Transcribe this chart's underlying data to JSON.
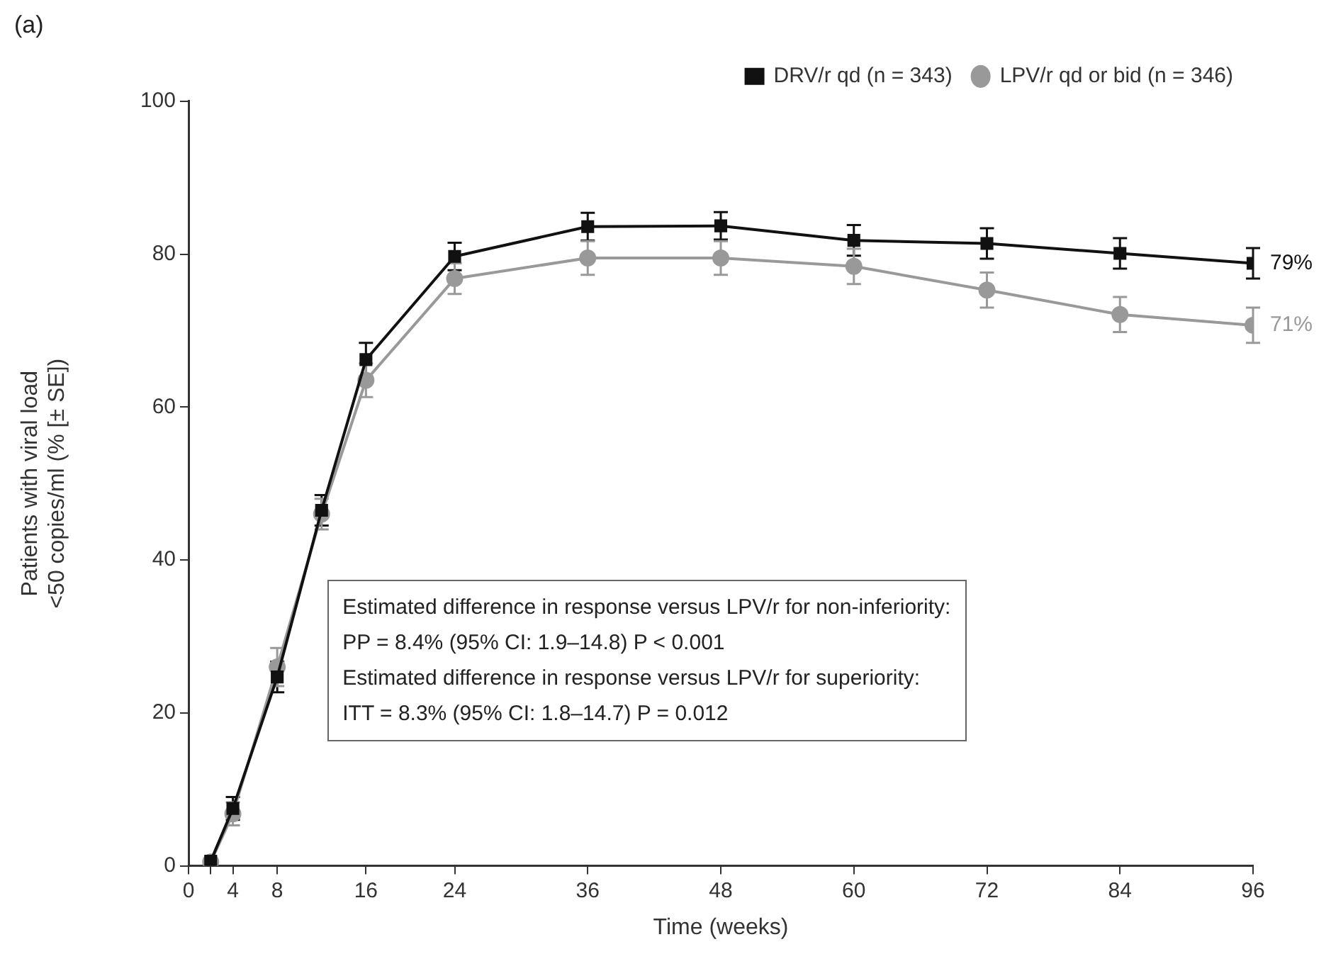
{
  "chart_data": {
    "type": "line",
    "title": "(a)",
    "xlabel": "Time (weeks)",
    "ylabel": "Patients with viral load\n<50 copies/ml (% [± SE])",
    "x": [
      2,
      4,
      8,
      12,
      16,
      24,
      36,
      48,
      60,
      72,
      84,
      96
    ],
    "series": [
      {
        "name": "DRV/r qd (n = 343)",
        "color": "#111111",
        "marker": "square",
        "values": [
          0.6,
          7.5,
          24.7,
          46.5,
          66.2,
          79.7,
          83.6,
          83.7,
          81.8,
          81.4,
          80.1,
          78.8
        ],
        "errors": [
          null,
          1.5,
          2,
          2,
          2.2,
          1.8,
          1.8,
          1.8,
          2,
          2,
          2,
          2
        ]
      },
      {
        "name": "LPV/r qd or bid (n = 346)",
        "color": "#999999",
        "marker": "circle",
        "values": [
          0.5,
          6.8,
          26,
          46,
          63.5,
          76.8,
          79.5,
          79.5,
          78.4,
          75.3,
          72.1,
          70.7
        ],
        "errors": [
          null,
          1.5,
          2.5,
          2,
          2.2,
          2,
          2.2,
          2.2,
          2.3,
          2.3,
          2.3,
          2.3
        ]
      }
    ],
    "xlim": [
      0,
      96
    ],
    "xticks": [
      0,
      {
        "value": 2,
        "label": null
      },
      4,
      8,
      16,
      24,
      36,
      48,
      60,
      72,
      84,
      96
    ],
    "ylim": [
      0,
      100
    ],
    "yticks": [
      0,
      20,
      40,
      60,
      80,
      100
    ],
    "grid": false,
    "legend": "top right",
    "line_style": "solid",
    "annotations": [
      {
        "text": "79%",
        "x": 96,
        "y": 78.8
      },
      {
        "text": "71%",
        "x": 96,
        "y": 70.7
      },
      "Estimated difference in response versus LPV/r for non-inferiority:",
      "PP = 8.4% (95% CI: 1.9–14.8) P < 0.001",
      "Estimated difference in response versus LPV/r for superiority:",
      "ITT = 8.3% (95% CI: 1.8–14.7) P = 0.012"
    ]
  }
}
